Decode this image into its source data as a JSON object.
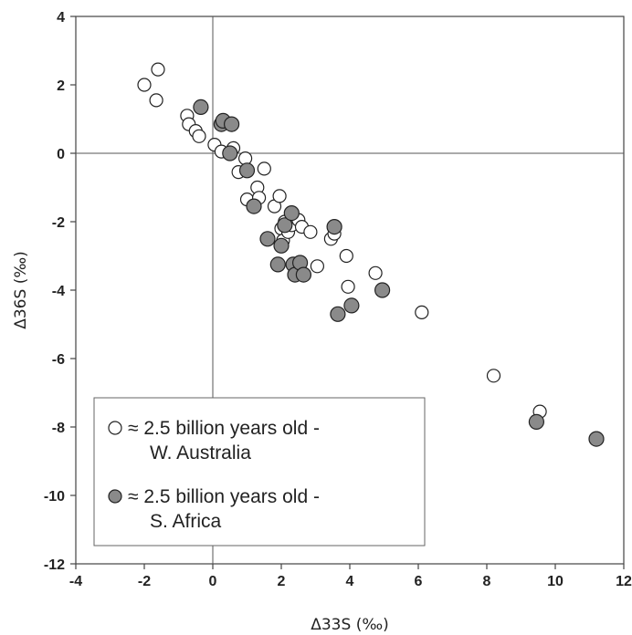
{
  "chart_data": {
    "type": "scatter",
    "xlabel": "Δ33S (‰)",
    "ylabel": "Δ36S (‰)",
    "xlim": [
      -4,
      12
    ],
    "ylim": [
      -12,
      4
    ],
    "x_ticks": [
      "-4",
      "-2",
      "0",
      "2",
      "4",
      "6",
      "8",
      "10",
      "12"
    ],
    "y_ticks": [
      "4",
      "2",
      "0",
      "-2",
      "-4",
      "-6",
      "-8",
      "-10",
      "-12"
    ],
    "reference_lines": {
      "x": 0,
      "y": 0
    },
    "grid": false,
    "legend_position": "bottom-left",
    "series": [
      {
        "name": "≈ 2.5 billion years old - W. Australia",
        "legend_lines": [
          "≈ 2.5 billion years old -",
          "W. Australia"
        ],
        "color": "#ffffff",
        "points": [
          [
            -2.0,
            2.0
          ],
          [
            -1.6,
            2.45
          ],
          [
            -1.65,
            1.55
          ],
          [
            -0.75,
            1.1
          ],
          [
            -0.7,
            0.85
          ],
          [
            -0.5,
            0.65
          ],
          [
            -0.4,
            0.5
          ],
          [
            0.05,
            0.25
          ],
          [
            0.25,
            0.05
          ],
          [
            0.6,
            0.15
          ],
          [
            0.75,
            -0.55
          ],
          [
            0.95,
            -0.15
          ],
          [
            1.0,
            -1.35
          ],
          [
            1.3,
            -1.0
          ],
          [
            1.35,
            -1.3
          ],
          [
            1.5,
            -0.45
          ],
          [
            1.8,
            -1.55
          ],
          [
            1.95,
            -1.25
          ],
          [
            2.0,
            -2.2
          ],
          [
            2.05,
            -2.55
          ],
          [
            2.1,
            -2.0
          ],
          [
            2.2,
            -2.3
          ],
          [
            2.3,
            -2.1
          ],
          [
            2.5,
            -1.95
          ],
          [
            2.6,
            -2.15
          ],
          [
            2.85,
            -2.3
          ],
          [
            3.05,
            -3.3
          ],
          [
            3.45,
            -2.5
          ],
          [
            3.55,
            -2.35
          ],
          [
            3.9,
            -3.0
          ],
          [
            3.95,
            -3.9
          ],
          [
            4.75,
            -3.5
          ],
          [
            6.1,
            -4.65
          ],
          [
            8.2,
            -6.5
          ],
          [
            9.55,
            -7.55
          ]
        ]
      },
      {
        "name": "≈ 2.5 billion years old - S. Africa",
        "legend_lines": [
          "≈ 2.5 billion years old -",
          "S. Africa"
        ],
        "color": "#8a8a8a",
        "points": [
          [
            -0.35,
            1.35
          ],
          [
            0.25,
            0.85
          ],
          [
            0.3,
            0.95
          ],
          [
            0.55,
            0.85
          ],
          [
            0.5,
            0.0
          ],
          [
            1.0,
            -0.5
          ],
          [
            1.2,
            -1.55
          ],
          [
            1.6,
            -2.5
          ],
          [
            1.9,
            -3.25
          ],
          [
            2.0,
            -2.7
          ],
          [
            2.1,
            -2.1
          ],
          [
            2.3,
            -1.75
          ],
          [
            2.35,
            -3.25
          ],
          [
            2.4,
            -3.55
          ],
          [
            2.55,
            -3.2
          ],
          [
            2.65,
            -3.55
          ],
          [
            3.55,
            -2.15
          ],
          [
            3.65,
            -4.7
          ],
          [
            4.05,
            -4.45
          ],
          [
            4.95,
            -4.0
          ],
          [
            9.45,
            -7.85
          ],
          [
            11.2,
            -8.35
          ]
        ]
      }
    ]
  }
}
